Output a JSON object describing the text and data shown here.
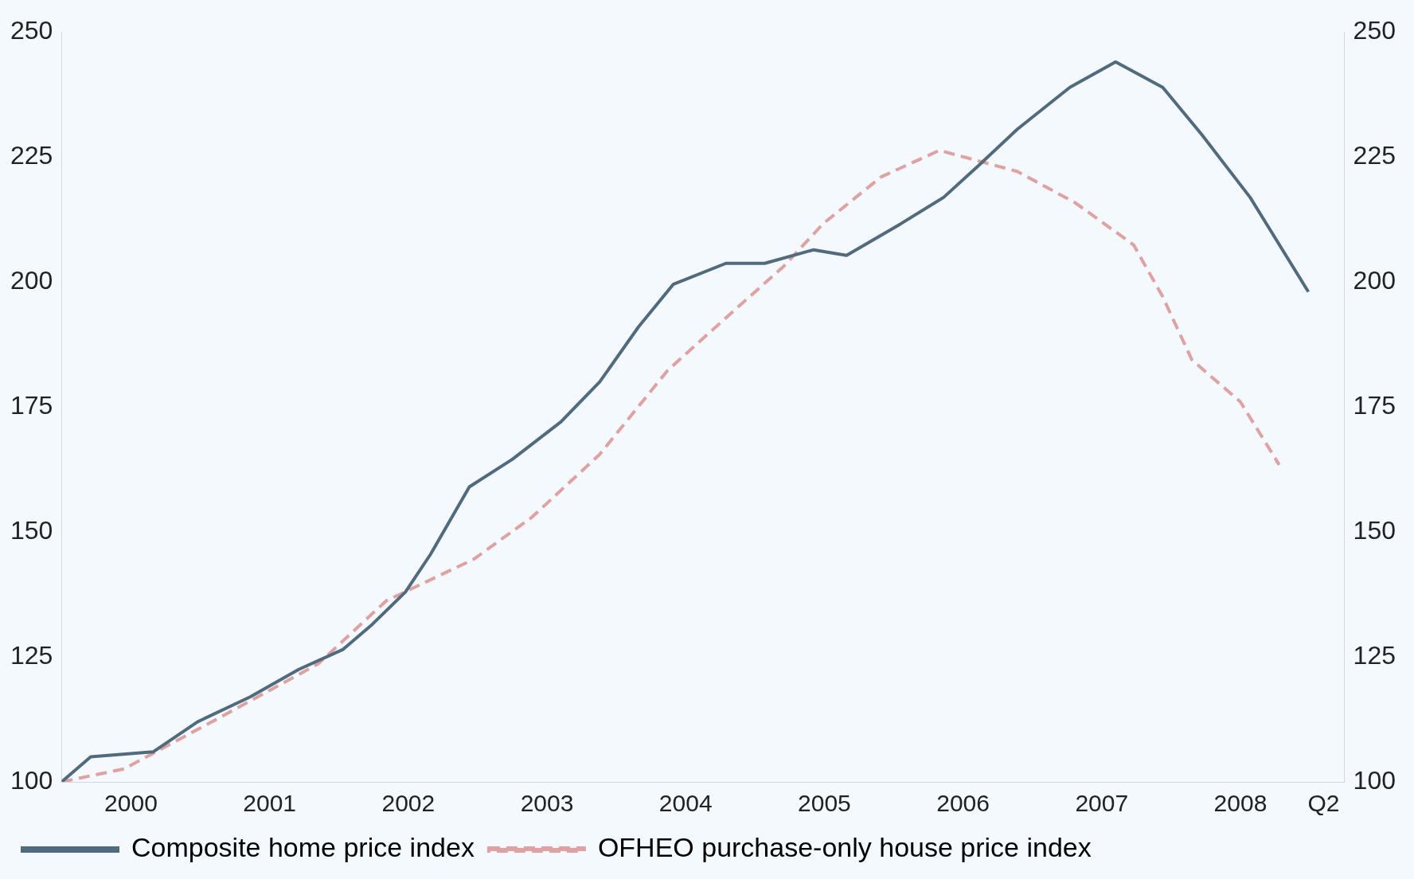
{
  "chart_data": {
    "type": "line",
    "xlim": [
      2000,
      2009.25
    ],
    "xticks": [
      {
        "value": 2000.5,
        "label": "2000"
      },
      {
        "value": 2001.5,
        "label": "2001"
      },
      {
        "value": 2002.5,
        "label": "2002"
      },
      {
        "value": 2003.5,
        "label": "2003"
      },
      {
        "value": 2004.5,
        "label": "2004"
      },
      {
        "value": 2005.5,
        "label": "2005"
      },
      {
        "value": 2006.5,
        "label": "2006"
      },
      {
        "value": 2007.5,
        "label": "2007"
      },
      {
        "value": 2008.5,
        "label": "2008"
      },
      {
        "value": 2009.1,
        "label": "Q2"
      }
    ],
    "ylim": [
      100,
      250
    ],
    "yticks": [
      100,
      125,
      150,
      175,
      200,
      225,
      250
    ],
    "y2lim": [
      100,
      250
    ],
    "y2ticks": [
      100,
      125,
      150,
      175,
      200,
      225,
      250
    ],
    "legend": "bottom",
    "grid": false,
    "marker": "none",
    "series": [
      {
        "name": "Composite home price index",
        "color": "#4f6b80",
        "line_style": "solid",
        "x": [
          2000,
          2000.21,
          2000.66,
          2000.98,
          2001.36,
          2001.71,
          2002.03,
          2002.24,
          2002.48,
          2002.66,
          2002.94,
          2003.25,
          2003.6,
          2003.88,
          2004.16,
          2004.41,
          2004.79,
          2005.07,
          2005.42,
          2005.66,
          2006.05,
          2006.36,
          2006.61,
          2006.89,
          2007.27,
          2007.6,
          2007.94,
          2008.22,
          2008.57,
          2008.99
        ],
        "values": [
          100,
          105,
          106,
          112,
          117,
          122.5,
          126.5,
          131.5,
          138,
          145.5,
          159,
          164.5,
          172,
          180,
          191,
          199.5,
          203.7,
          203.7,
          206.4,
          205.3,
          211.6,
          216.9,
          223.2,
          230.5,
          238.9,
          244,
          238.9,
          229.5,
          216.9,
          198
        ]
      },
      {
        "name": "OFHEO purchase-only house price index",
        "color": "#e3a0a0",
        "line_style": "dashed",
        "axis": "y2",
        "x": [
          2000,
          2000.45,
          2001.15,
          2001.85,
          2002.34,
          2002.97,
          2003.39,
          2003.88,
          2004.37,
          2004.79,
          2005.21,
          2005.49,
          2005.91,
          2006.33,
          2006.89,
          2007.31,
          2007.73,
          2007.94,
          2008.15,
          2008.5,
          2008.78
        ],
        "values": [
          100,
          102.6,
          113,
          123.6,
          136.2,
          144.5,
          152.9,
          165.5,
          182.3,
          192.8,
          203.2,
          211.6,
          221,
          226.3,
          222.1,
          215.8,
          207.4,
          197,
          184.4,
          176,
          163.4
        ]
      }
    ]
  }
}
